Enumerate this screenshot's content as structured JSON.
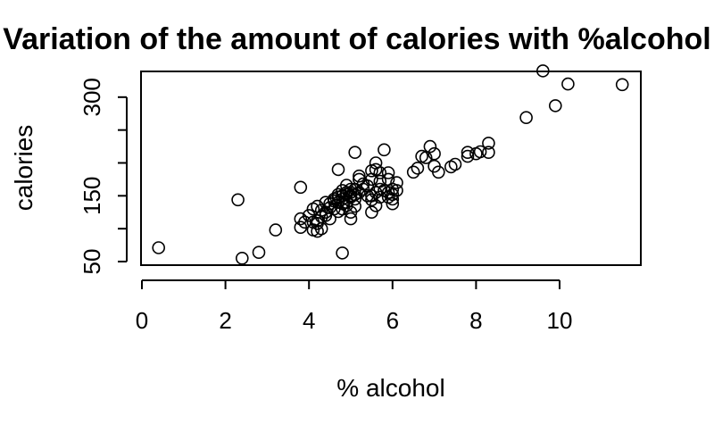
{
  "chart_data": {
    "type": "scatter",
    "title": "Variation of the amount of calories with %alcohol",
    "xlabel": "% alcohol",
    "ylabel": "calories",
    "xlim": [
      0,
      12
    ],
    "ylim": [
      50,
      330
    ],
    "x_ticks": [
      0,
      2,
      4,
      6,
      8,
      10
    ],
    "y_ticks": [
      50,
      100,
      150,
      200,
      250,
      300
    ],
    "y_tick_labels": [
      "50",
      "",
      "150",
      "",
      "",
      "300"
    ],
    "grid": false,
    "legend": "none",
    "points": [
      [
        0.4,
        71
      ],
      [
        2.3,
        144
      ],
      [
        2.4,
        55
      ],
      [
        2.8,
        64
      ],
      [
        3.2,
        98
      ],
      [
        3.8,
        115
      ],
      [
        3.8,
        163
      ],
      [
        3.8,
        102
      ],
      [
        3.9,
        110
      ],
      [
        4.0,
        120
      ],
      [
        4.1,
        110
      ],
      [
        4.1,
        130
      ],
      [
        4.1,
        98
      ],
      [
        4.2,
        108
      ],
      [
        4.2,
        112
      ],
      [
        4.2,
        134
      ],
      [
        4.2,
        96
      ],
      [
        4.3,
        100
      ],
      [
        4.3,
        118
      ],
      [
        4.3,
        128
      ],
      [
        4.4,
        125
      ],
      [
        4.4,
        140
      ],
      [
        4.4,
        120
      ],
      [
        4.5,
        138
      ],
      [
        4.5,
        132
      ],
      [
        4.5,
        115
      ],
      [
        4.6,
        145
      ],
      [
        4.6,
        130
      ],
      [
        4.6,
        142
      ],
      [
        4.7,
        152
      ],
      [
        4.7,
        140
      ],
      [
        4.7,
        126
      ],
      [
        4.7,
        148
      ],
      [
        4.7,
        190
      ],
      [
        4.8,
        138
      ],
      [
        4.8,
        150
      ],
      [
        4.8,
        158
      ],
      [
        4.8,
        145
      ],
      [
        4.8,
        130
      ],
      [
        4.8,
        63
      ],
      [
        4.9,
        152
      ],
      [
        4.9,
        140
      ],
      [
        4.9,
        166
      ],
      [
        4.9,
        155
      ],
      [
        4.9,
        135
      ],
      [
        5.0,
        148
      ],
      [
        5.0,
        155
      ],
      [
        5.0,
        160
      ],
      [
        5.0,
        125
      ],
      [
        5.0,
        115
      ],
      [
        5.0,
        150
      ],
      [
        5.1,
        145
      ],
      [
        5.1,
        152
      ],
      [
        5.1,
        160
      ],
      [
        5.1,
        134
      ],
      [
        5.1,
        216
      ],
      [
        5.2,
        155
      ],
      [
        5.2,
        180
      ],
      [
        5.2,
        175
      ],
      [
        5.3,
        160
      ],
      [
        5.3,
        168
      ],
      [
        5.4,
        150
      ],
      [
        5.4,
        165
      ],
      [
        5.5,
        175
      ],
      [
        5.5,
        188
      ],
      [
        5.5,
        150
      ],
      [
        5.5,
        144
      ],
      [
        5.5,
        125
      ],
      [
        5.6,
        155
      ],
      [
        5.6,
        190
      ],
      [
        5.6,
        200
      ],
      [
        5.6,
        135
      ],
      [
        5.7,
        160
      ],
      [
        5.7,
        172
      ],
      [
        5.7,
        148
      ],
      [
        5.7,
        185
      ],
      [
        5.8,
        220
      ],
      [
        5.8,
        158
      ],
      [
        5.9,
        155
      ],
      [
        5.9,
        148
      ],
      [
        5.9,
        175
      ],
      [
        5.9,
        185
      ],
      [
        6.0,
        138
      ],
      [
        6.0,
        145
      ],
      [
        6.0,
        160
      ],
      [
        6.0,
        152
      ],
      [
        6.1,
        170
      ],
      [
        6.1,
        158
      ],
      [
        6.5,
        186
      ],
      [
        6.6,
        192
      ],
      [
        6.7,
        210
      ],
      [
        6.8,
        208
      ],
      [
        6.9,
        225
      ],
      [
        7.0,
        214
      ],
      [
        7.0,
        195
      ],
      [
        7.1,
        186
      ],
      [
        7.4,
        194
      ],
      [
        7.5,
        198
      ],
      [
        7.8,
        210
      ],
      [
        7.8,
        216
      ],
      [
        8.0,
        214
      ],
      [
        8.1,
        217
      ],
      [
        8.3,
        216
      ],
      [
        8.3,
        230
      ],
      [
        9.2,
        269
      ],
      [
        9.6,
        340
      ],
      [
        9.9,
        287
      ],
      [
        10.2,
        320
      ],
      [
        11.5,
        319
      ]
    ]
  }
}
